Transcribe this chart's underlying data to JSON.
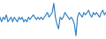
{
  "values": [
    2,
    1,
    2,
    1.5,
    2.5,
    1,
    1.5,
    2,
    1,
    2,
    1.5,
    1,
    2,
    1.5,
    2,
    1,
    1.5,
    1,
    2,
    1.5,
    2,
    2.5,
    2,
    1.5,
    2,
    1.5,
    2,
    1.5,
    2,
    2.5,
    3,
    2,
    2.5,
    3,
    5,
    2,
    0.5,
    -0.5,
    2,
    1.5,
    2,
    3,
    2.5,
    2,
    1.5,
    2,
    1.5,
    0.5,
    -2,
    2,
    3,
    2.5,
    2,
    3,
    2.5,
    3,
    3.5,
    2.5,
    2,
    3,
    2.5,
    3,
    2.5,
    2,
    3,
    3.5,
    2.5,
    3
  ],
  "line_color": "#2b7bbf",
  "background_color": "#ffffff",
  "linewidth": 0.8
}
